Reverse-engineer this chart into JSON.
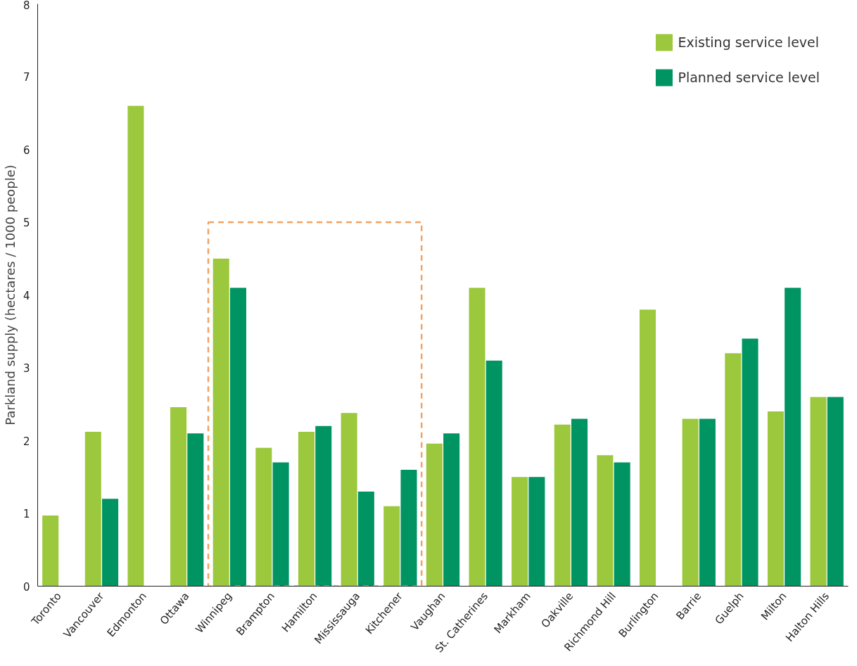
{
  "chart_data": {
    "type": "bar",
    "ylabel": "Parkland supply (hectares / 1000 people)",
    "categories": [
      "Toronto",
      "Vancouver",
      "Edmonton",
      "Ottawa",
      "Winnipeg",
      "Brampton",
      "Hamilton",
      "Mississauga",
      "Kitchener",
      "Vaughan",
      "St. Catherines",
      "Markham",
      "Oakville",
      "Richmond Hill",
      "Burlington",
      "Barrie",
      "Guelph",
      "Milton",
      "Halton Hills"
    ],
    "series": [
      {
        "name": "Existing service level",
        "color": "#9bc83c",
        "values": [
          0.97,
          2.12,
          6.6,
          2.46,
          4.5,
          1.9,
          2.12,
          2.38,
          1.1,
          1.96,
          4.1,
          1.5,
          2.22,
          1.8,
          3.8,
          2.3,
          3.2,
          2.4,
          2.6
        ]
      },
      {
        "name": "Planned service level",
        "color": "#009463",
        "values": [
          null,
          1.2,
          null,
          2.1,
          4.1,
          1.7,
          2.2,
          1.3,
          1.6,
          2.1,
          3.1,
          1.5,
          2.3,
          1.7,
          null,
          2.3,
          3.4,
          4.1,
          2.6
        ]
      }
    ],
    "ylim": [
      0,
      8
    ],
    "yticks": [
      0,
      1,
      2,
      3,
      4,
      5,
      6,
      7,
      8
    ],
    "grid": false,
    "legend": "top right"
  }
}
